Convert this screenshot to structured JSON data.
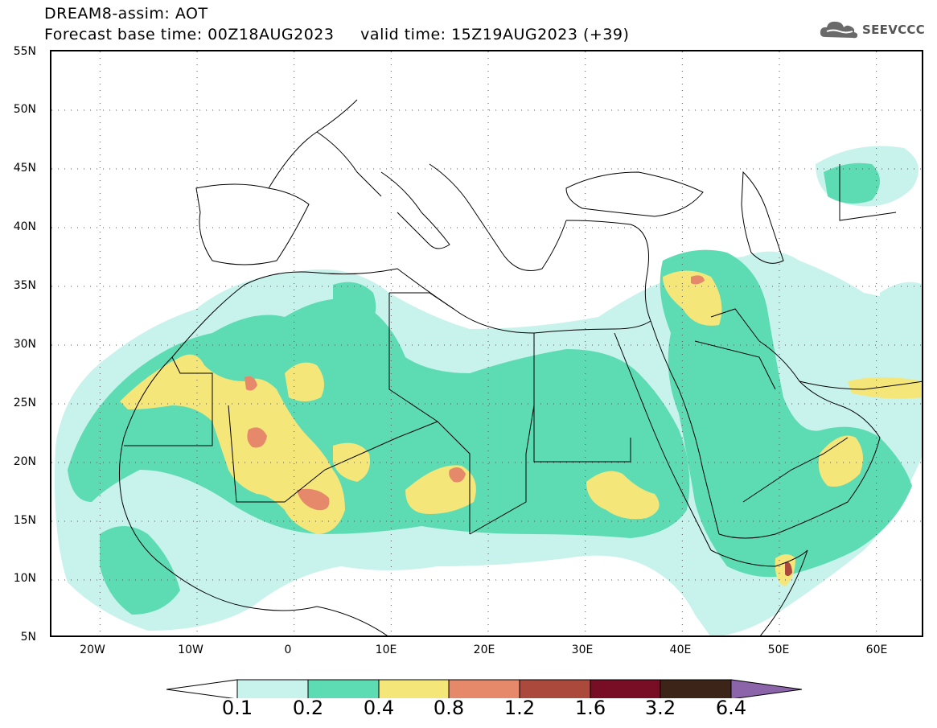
{
  "title": {
    "line1": "DREAM8-assim: AOT",
    "line2": "Forecast base time: 00Z18AUG2023     valid time: 15Z19AUG2023 (+39)"
  },
  "logo": {
    "text": "SEEVCCC",
    "icon": "cloud-icon"
  },
  "axes": {
    "lat_labels": [
      "55N",
      "50N",
      "45N",
      "40N",
      "35N",
      "30N",
      "25N",
      "20N",
      "15N",
      "10N",
      "5N"
    ],
    "lon_labels": [
      "20W",
      "10W",
      "0",
      "10E",
      "20E",
      "30E",
      "40E",
      "50E",
      "60E"
    ],
    "lon_range": [
      -25,
      65
    ],
    "lat_range": [
      5,
      55
    ],
    "grid": "dotted"
  },
  "legend": {
    "labels": [
      "0.1",
      "0.2",
      "0.4",
      "0.8",
      "1.2",
      "1.6",
      "3.2",
      "6.4"
    ],
    "colors": [
      "#c8f2ec",
      "#5ddcb4",
      "#f5e67a",
      "#e6896a",
      "#ab4a3c",
      "#780d26",
      "#3c2418",
      "#8c64aa"
    ]
  }
}
